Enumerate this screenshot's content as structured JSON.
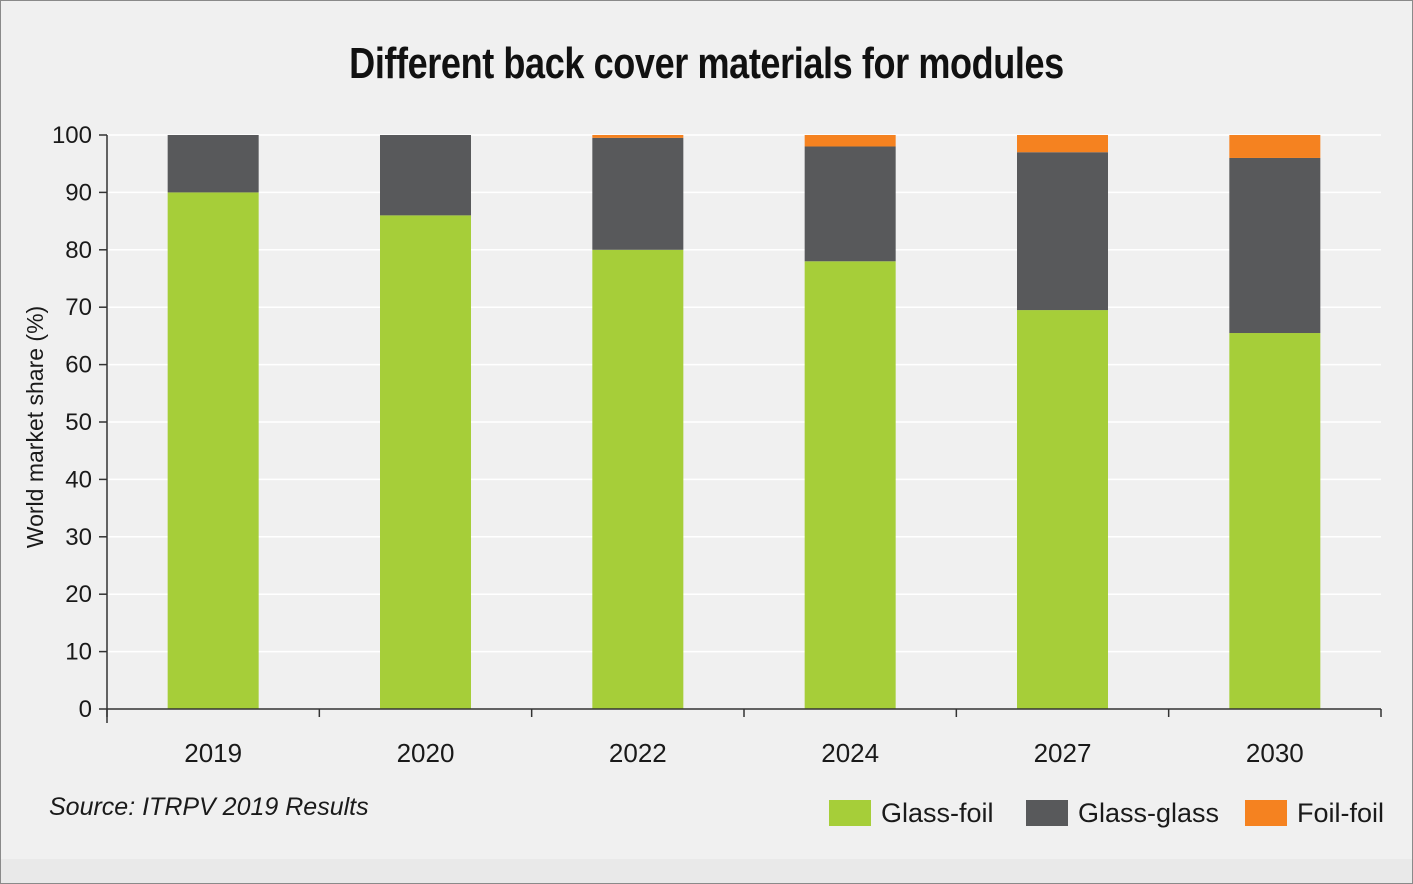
{
  "chart_data": {
    "type": "bar",
    "stacked": true,
    "title": "Different back cover materials for modules",
    "ylabel": "World market share (%)",
    "xlabel": "",
    "categories": [
      "2019",
      "2020",
      "2022",
      "2024",
      "2027",
      "2030"
    ],
    "series": [
      {
        "name": "Glass-foil",
        "color": "#a6ce39",
        "values": [
          90,
          86,
          80,
          78,
          69.5,
          65.5
        ]
      },
      {
        "name": "Glass-glass",
        "color": "#58595b",
        "values": [
          10,
          14,
          19.5,
          20,
          27.5,
          30.5
        ]
      },
      {
        "name": "Foil-foil",
        "color": "#f58220",
        "values": [
          0,
          0,
          0.5,
          2,
          3,
          4
        ]
      }
    ],
    "ylim": [
      0,
      100
    ],
    "yticks": [
      0,
      10,
      20,
      30,
      40,
      50,
      60,
      70,
      80,
      90,
      100
    ],
    "grid": true,
    "legend_position": "bottom-right"
  },
  "source": "Source: ITRPV 2019 Results"
}
